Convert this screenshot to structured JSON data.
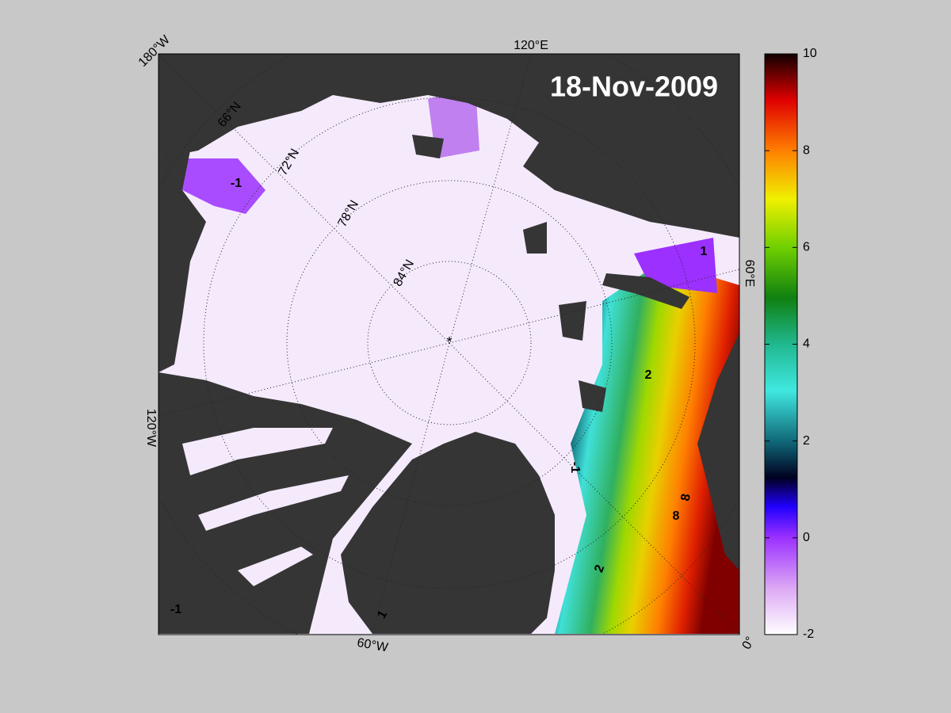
{
  "map": {
    "date": "18-Nov-2009",
    "longitude_labels": [
      "180°W",
      "120°E",
      "60°E",
      "0°",
      "60°W",
      "120°W"
    ],
    "latitude_labels": [
      "66°N",
      "72°N",
      "78°N",
      "84°N"
    ],
    "contour_labels": [
      "-1",
      "-1",
      "-1",
      "1",
      "1",
      "2",
      "2",
      "8",
      "8"
    ]
  },
  "colorbar": {
    "lim": [
      -2,
      10
    ],
    "ticks": [
      -2,
      0,
      2,
      4,
      6,
      8,
      10
    ]
  }
}
